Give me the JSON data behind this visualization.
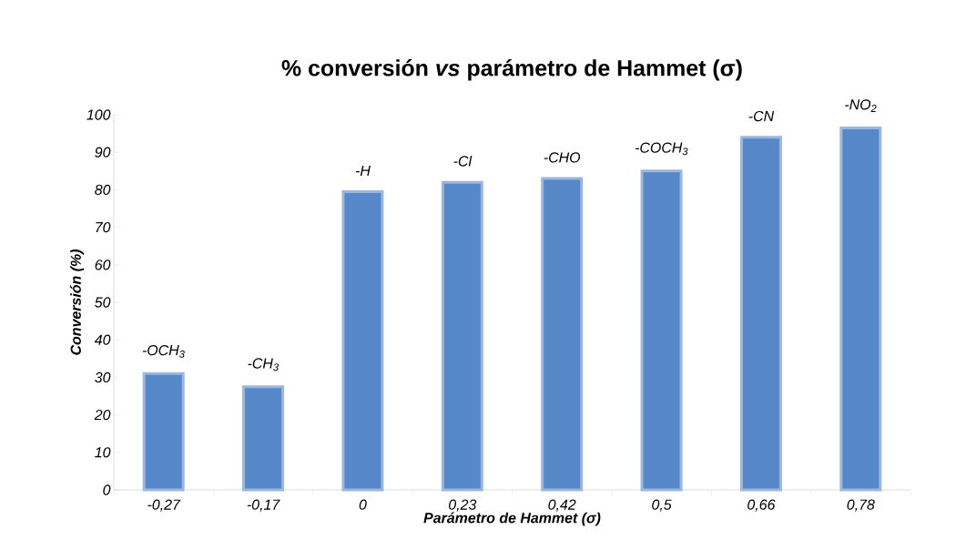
{
  "chart_data": {
    "type": "bar",
    "title": "% conversión  *vs* parámetro de Hammet (σ)",
    "xlabel": "Parámetro de Hammet (σ)",
    "ylabel": "Conversión (%)",
    "categories": [
      "-0,27",
      "-0,17",
      "0",
      "0,23",
      "0,42",
      "0,5",
      "0,66",
      "0,78"
    ],
    "values": [
      31,
      27.5,
      79.5,
      82,
      83,
      85,
      94,
      96.5
    ],
    "color": "#5687c8",
    "ylim": [
      0,
      100
    ],
    "yticks": [
      0,
      10,
      20,
      30,
      40,
      50,
      60,
      70,
      80,
      90,
      100
    ],
    "grid": false,
    "annotations": [
      {
        "text": "-OCH$_{3}$",
        "x": "-0,27",
        "y": 31
      },
      {
        "text": "-CH$_{3}$",
        "x": "-0,17",
        "y": 27.5
      },
      {
        "text": "-H",
        "x": "0",
        "y": 79.5
      },
      {
        "text": "-Cl",
        "x": "0,23",
        "y": 82
      },
      {
        "text": "-CHO",
        "x": "0,42",
        "y": 83
      },
      {
        "text": "-COCH$_{3}$",
        "x": "0,5",
        "y": 85
      },
      {
        "text": "-CN",
        "x": "0,66",
        "y": 94
      },
      {
        "text": "-NO$_{2}$",
        "x": "0,78",
        "y": 96.5
      }
    ]
  }
}
